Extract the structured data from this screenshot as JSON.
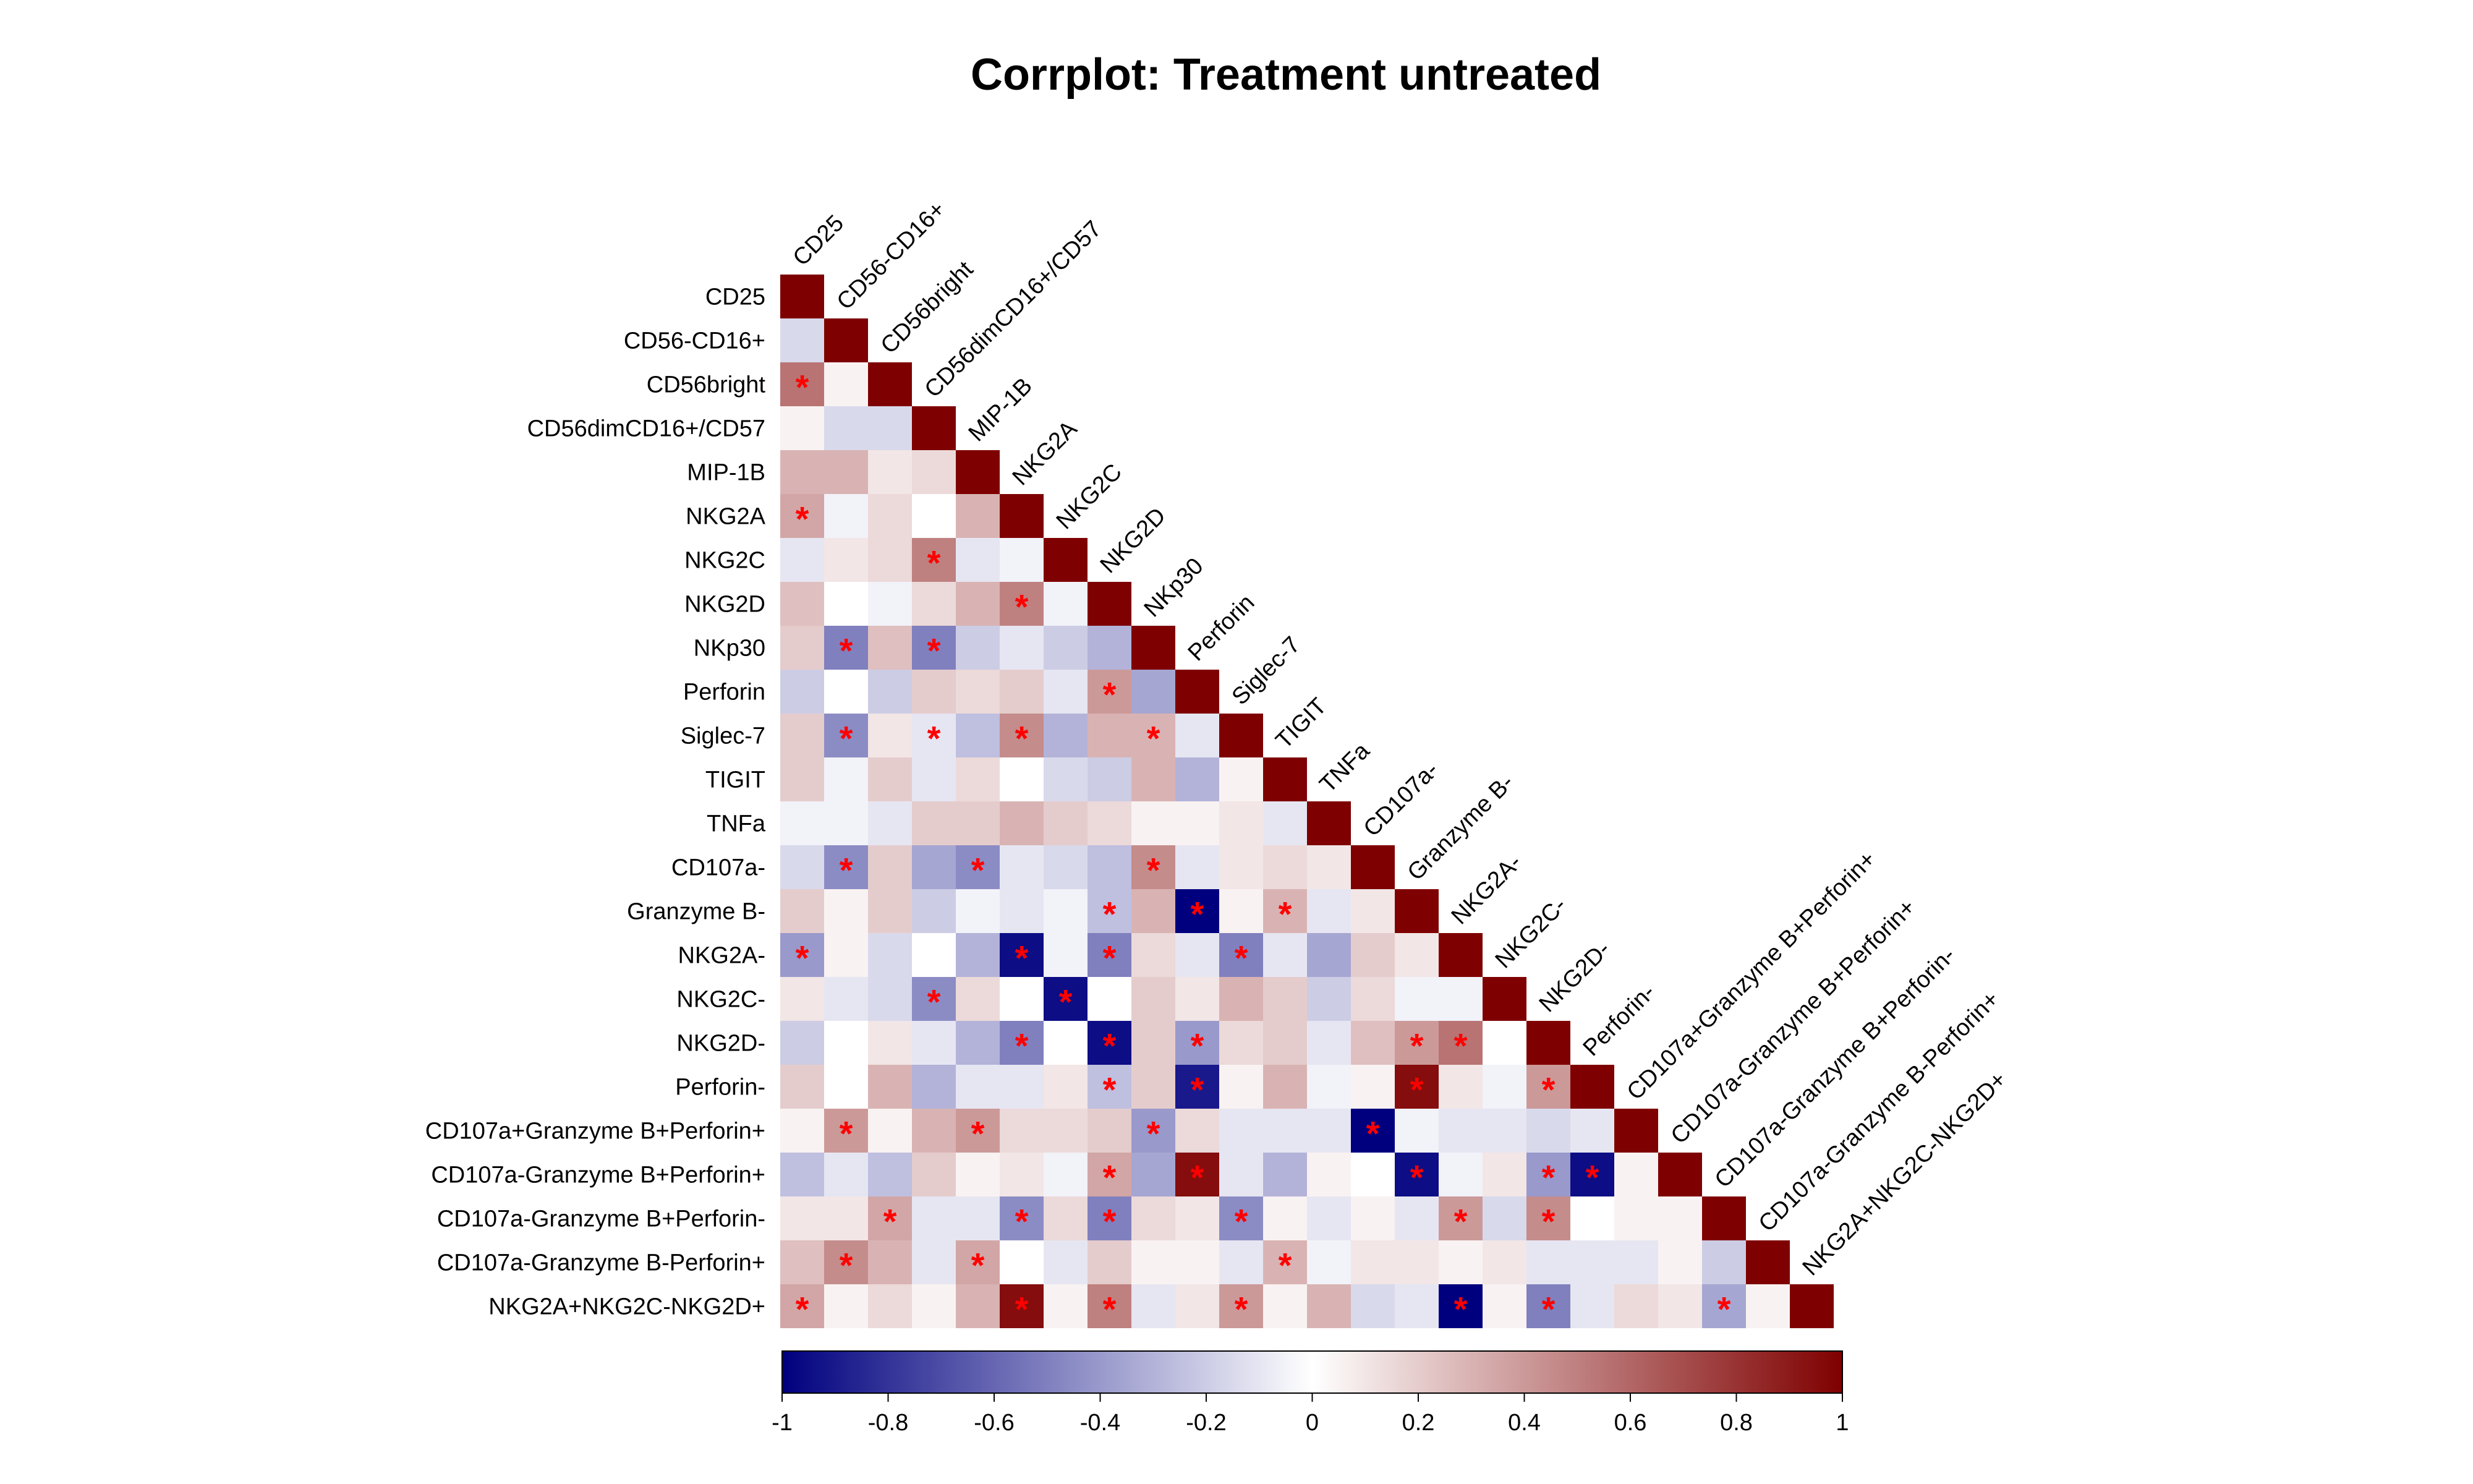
{
  "title": "Corrplot: Treatment untreated",
  "chart_data": {
    "type": "heatmap",
    "title": "Corrplot: Treatment untreated",
    "layout": "lower-triangle",
    "variables": [
      "CD25",
      "CD56-CD16+",
      "CD56bright",
      "CD56dimCD16+/CD57",
      "MIP-1B",
      "NKG2A",
      "NKG2C",
      "NKG2D",
      "NKp30",
      "Perforin",
      "Siglec-7",
      "TIGIT",
      "TNFa",
      "CD107a-",
      "Granzyme B-",
      "NKG2A-",
      "NKG2C-",
      "NKG2D-",
      "Perforin-",
      "CD107a+Granzyme B+Perforin+",
      "CD107a-Granzyme B+Perforin+",
      "CD107a-Granzyme B+Perforin-",
      "CD107a-Granzyme B-Perforin+",
      "NKG2A+NKG2C-NKG2D+"
    ],
    "values": [
      [
        1
      ],
      [
        -0.15,
        1
      ],
      [
        0.55,
        0.05,
        1
      ],
      [
        0.05,
        -0.15,
        -0.15,
        1
      ],
      [
        0.3,
        0.3,
        0.1,
        0.15,
        1
      ],
      [
        0.35,
        -0.05,
        0.15,
        0.0,
        0.3,
        1
      ],
      [
        -0.1,
        0.1,
        0.15,
        0.5,
        -0.1,
        -0.05,
        1
      ],
      [
        0.25,
        0.0,
        -0.05,
        0.15,
        0.3,
        0.5,
        -0.05,
        1
      ],
      [
        0.2,
        -0.5,
        0.25,
        -0.5,
        -0.2,
        -0.1,
        -0.2,
        -0.3,
        1
      ],
      [
        -0.2,
        0.0,
        -0.2,
        0.2,
        0.15,
        0.2,
        -0.1,
        0.4,
        -0.35,
        1
      ],
      [
        0.2,
        -0.45,
        0.1,
        -0.1,
        -0.25,
        0.45,
        -0.3,
        0.3,
        0.3,
        -0.1,
        1
      ],
      [
        0.2,
        -0.05,
        0.2,
        -0.1,
        0.15,
        0.0,
        -0.15,
        -0.2,
        0.3,
        -0.3,
        0.05,
        1
      ],
      [
        -0.05,
        -0.05,
        -0.1,
        0.2,
        0.2,
        0.3,
        0.2,
        0.15,
        0.05,
        0.05,
        0.1,
        -0.1,
        1
      ],
      [
        -0.15,
        -0.45,
        0.2,
        -0.35,
        -0.45,
        -0.1,
        -0.15,
        -0.25,
        0.45,
        -0.1,
        0.1,
        0.15,
        0.1,
        1
      ],
      [
        0.2,
        0.05,
        0.2,
        -0.2,
        -0.05,
        -0.1,
        -0.05,
        -0.25,
        0.3,
        -1.0,
        0.05,
        0.3,
        -0.1,
        0.1,
        1
      ],
      [
        -0.4,
        0.05,
        -0.15,
        0.0,
        -0.3,
        -0.95,
        -0.05,
        -0.5,
        0.15,
        -0.1,
        -0.5,
        -0.1,
        -0.35,
        0.2,
        0.1,
        1
      ],
      [
        0.1,
        -0.1,
        -0.15,
        -0.45,
        0.15,
        0.0,
        -0.95,
        0.0,
        0.2,
        0.1,
        0.3,
        0.2,
        -0.2,
        0.15,
        -0.05,
        -0.05,
        1
      ],
      [
        -0.2,
        0.0,
        0.1,
        -0.1,
        -0.3,
        -0.5,
        0.0,
        -0.95,
        0.2,
        -0.4,
        0.15,
        0.2,
        -0.1,
        0.25,
        0.4,
        0.55,
        0.0,
        1
      ],
      [
        0.2,
        0.0,
        0.3,
        -0.3,
        -0.1,
        -0.1,
        0.1,
        -0.25,
        0.2,
        -0.9,
        0.05,
        0.3,
        -0.05,
        0.05,
        0.95,
        0.1,
        -0.05,
        0.4,
        1
      ],
      [
        0.05,
        0.4,
        0.05,
        0.3,
        0.4,
        0.15,
        0.15,
        0.2,
        -0.4,
        0.15,
        -0.1,
        -0.1,
        -0.1,
        -1.0,
        -0.05,
        -0.1,
        -0.1,
        -0.15,
        -0.1,
        1
      ],
      [
        -0.25,
        -0.1,
        -0.25,
        0.2,
        0.05,
        0.1,
        -0.05,
        0.35,
        -0.35,
        0.95,
        -0.1,
        -0.3,
        0.05,
        0.0,
        -0.95,
        -0.05,
        0.1,
        -0.4,
        -0.95,
        0.05,
        1
      ],
      [
        0.1,
        0.1,
        0.35,
        -0.1,
        -0.1,
        -0.45,
        0.15,
        -0.5,
        0.15,
        0.1,
        -0.45,
        0.05,
        -0.1,
        0.05,
        -0.1,
        0.4,
        -0.15,
        0.45,
        0.0,
        0.05,
        0.05,
        1
      ],
      [
        0.25,
        0.45,
        0.3,
        -0.1,
        0.35,
        0.0,
        -0.1,
        0.2,
        0.05,
        0.05,
        -0.1,
        0.3,
        -0.05,
        0.1,
        0.1,
        0.05,
        0.1,
        -0.1,
        -0.1,
        -0.1,
        0.05,
        -0.2,
        1
      ],
      [
        0.35,
        0.05,
        0.15,
        0.05,
        0.3,
        0.95,
        0.05,
        0.5,
        -0.1,
        0.1,
        0.4,
        0.05,
        0.3,
        -0.15,
        -0.1,
        -1.0,
        0.05,
        -0.5,
        -0.1,
        0.15,
        0.1,
        -0.35,
        0.05,
        1
      ]
    ],
    "significant": [
      [
        2,
        0
      ],
      [
        5,
        0
      ],
      [
        6,
        3
      ],
      [
        7,
        5
      ],
      [
        8,
        1
      ],
      [
        8,
        3
      ],
      [
        9,
        7
      ],
      [
        10,
        1
      ],
      [
        10,
        3
      ],
      [
        10,
        5
      ],
      [
        10,
        8
      ],
      [
        13,
        1
      ],
      [
        13,
        4
      ],
      [
        13,
        8
      ],
      [
        14,
        7
      ],
      [
        14,
        9
      ],
      [
        14,
        11
      ],
      [
        15,
        0
      ],
      [
        15,
        5
      ],
      [
        15,
        7
      ],
      [
        15,
        10
      ],
      [
        16,
        3
      ],
      [
        16,
        6
      ],
      [
        17,
        5
      ],
      [
        17,
        7
      ],
      [
        17,
        9
      ],
      [
        17,
        14
      ],
      [
        17,
        15
      ],
      [
        18,
        7
      ],
      [
        18,
        9
      ],
      [
        18,
        14
      ],
      [
        18,
        17
      ],
      [
        19,
        1
      ],
      [
        19,
        4
      ],
      [
        19,
        8
      ],
      [
        19,
        13
      ],
      [
        20,
        7
      ],
      [
        20,
        9
      ],
      [
        20,
        14
      ],
      [
        20,
        17
      ],
      [
        20,
        18
      ],
      [
        21,
        2
      ],
      [
        21,
        5
      ],
      [
        21,
        7
      ],
      [
        21,
        10
      ],
      [
        21,
        15
      ],
      [
        21,
        17
      ],
      [
        22,
        1
      ],
      [
        22,
        4
      ],
      [
        22,
        11
      ],
      [
        23,
        0
      ],
      [
        23,
        5
      ],
      [
        23,
        7
      ],
      [
        23,
        10
      ],
      [
        23,
        15
      ],
      [
        23,
        17
      ],
      [
        23,
        21
      ]
    ],
    "colorbar": {
      "range": [
        -1,
        1
      ],
      "ticks": [
        "-1",
        "-0.8",
        "-0.6",
        "-0.4",
        "-0.2",
        "0",
        "0.2",
        "0.4",
        "0.6",
        "0.8",
        "1"
      ],
      "colors": [
        "#00007F",
        "#FFFFFF",
        "#7F0000"
      ]
    },
    "marker": "*",
    "marker_color": "#FF0000"
  }
}
